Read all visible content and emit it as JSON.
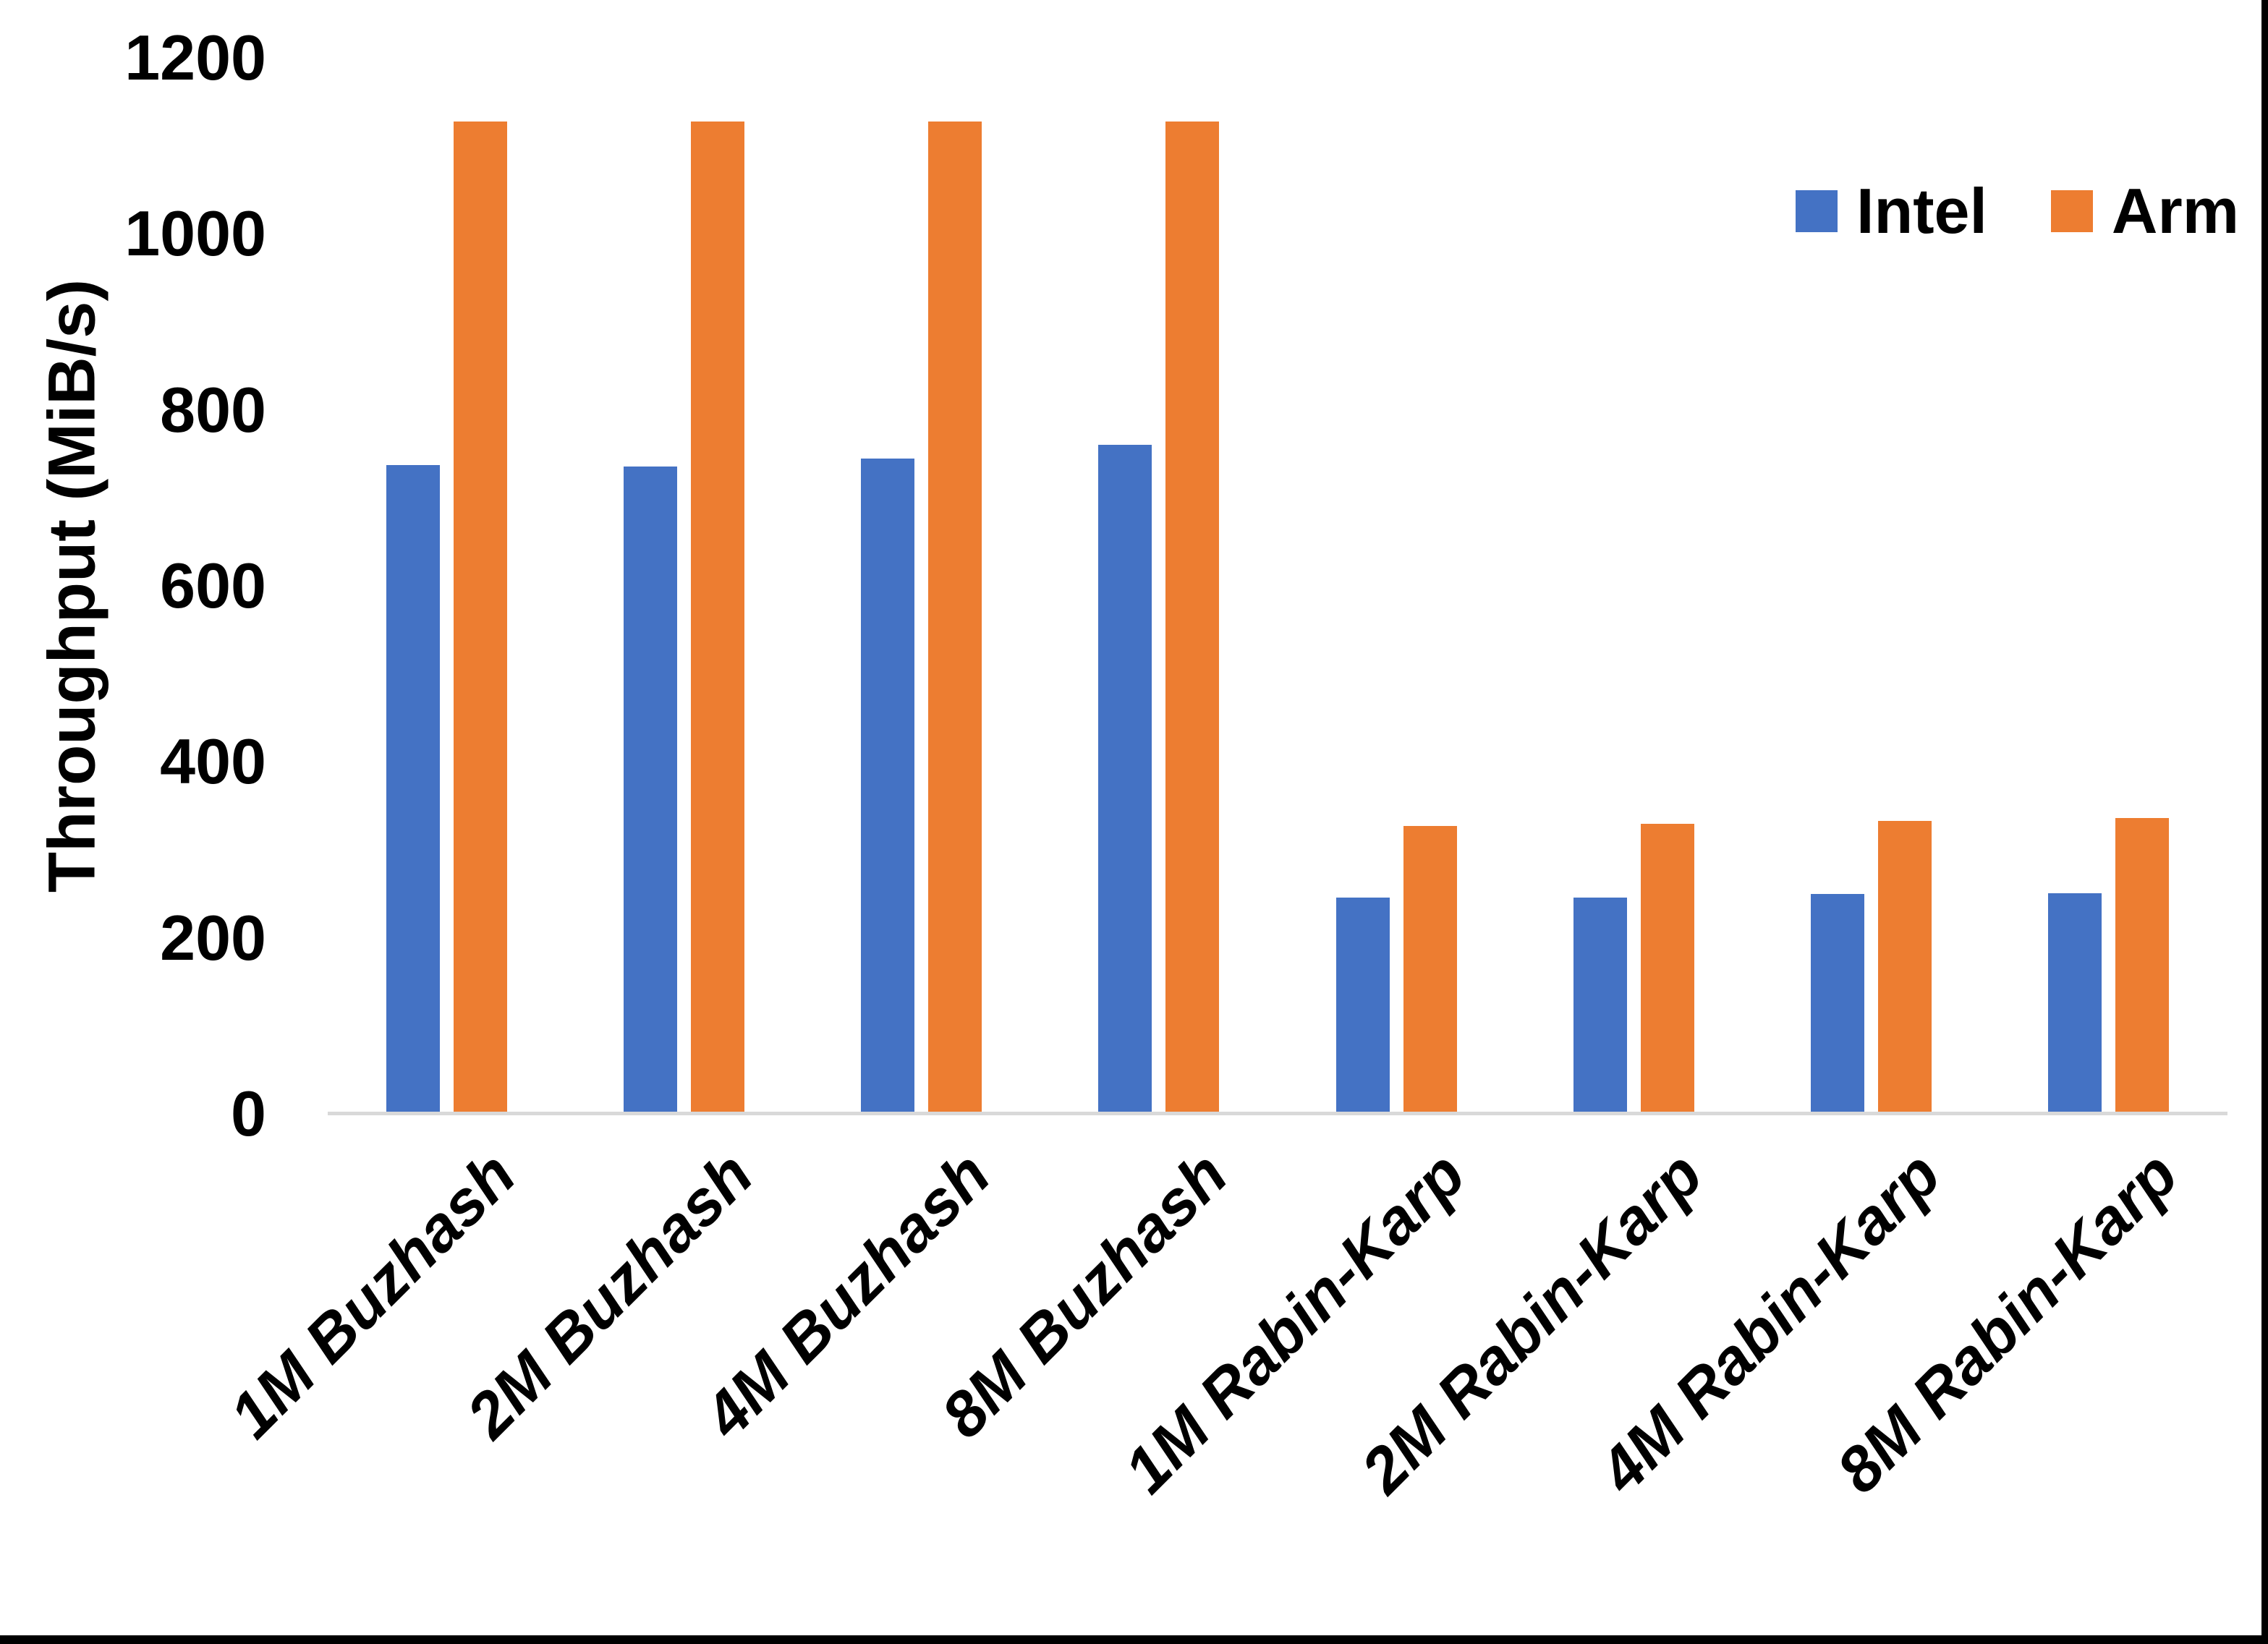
{
  "chart_data": {
    "type": "bar",
    "title": "",
    "xlabel": "",
    "ylabel": "Throughput (MiB/s)",
    "ylim": [
      0,
      1200
    ],
    "yticks": [
      0,
      200,
      400,
      600,
      800,
      1000,
      1200
    ],
    "grid": false,
    "legend_position": "top-right",
    "axis_line_color": "#d9d9d9",
    "categories": [
      "1M Buzhash",
      "2M Buzhash",
      "4M Buzhash",
      "8M Buzhash",
      "1M Rabin-Karp",
      "2M Rabin-Karp",
      "4M Rabin-Karp",
      "8M Rabin-Karp"
    ],
    "series": [
      {
        "name": "Intel",
        "color": "#4472C4",
        "values": [
          737,
          736,
          745,
          760,
          246,
          246,
          250,
          251
        ]
      },
      {
        "name": "Arm",
        "color": "#ED7D31",
        "values": [
          1128,
          1128,
          1128,
          1128,
          327,
          330,
          333,
          336
        ]
      }
    ]
  }
}
